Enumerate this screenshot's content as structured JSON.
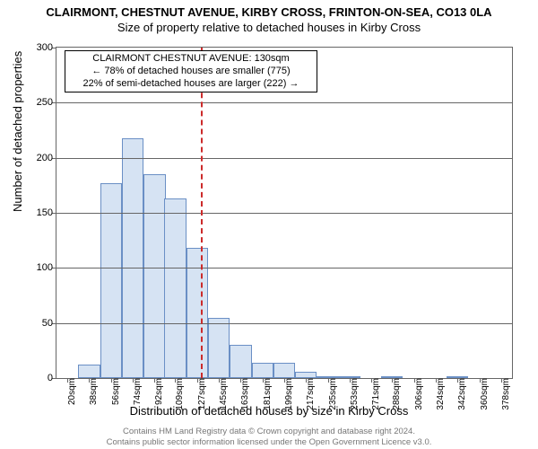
{
  "title": "CLAIRMONT, CHESTNUT AVENUE, KIRBY CROSS, FRINTON-ON-SEA, CO13 0LA",
  "title_fontsize": 13,
  "subtitle": "Size of property relative to detached houses in Kirby Cross",
  "subtitle_fontsize": 13,
  "annotation": {
    "line1": "CLAIRMONT CHESTNUT AVENUE: 130sqm",
    "line2": "← 78% of detached houses are smaller (775)",
    "line3": "22% of semi-detached houses are larger (222) →"
  },
  "ylabel": "Number of detached properties",
  "xlabel": "Distribution of detached houses by size in Kirby Cross",
  "footer_line1": "Contains HM Land Registry data © Crown copyright and database right 2024.",
  "footer_line2": "Contains public sector information licensed under the Open Government Licence v3.0.",
  "chart": {
    "type": "histogram",
    "background_color": "#ffffff",
    "grid_color": "#666666",
    "bar_fill": "#d6e3f3",
    "bar_stroke": "#6a8fc5",
    "marker_color": "#cc2b2b",
    "marker_dash": "3,3",
    "marker_x": 130,
    "ylim": [
      0,
      300
    ],
    "ytick_step": 50,
    "xlim": [
      11,
      387
    ],
    "xticks": [
      20,
      38,
      56,
      74,
      92,
      109,
      127,
      145,
      163,
      181,
      199,
      217,
      235,
      253,
      271,
      288,
      306,
      324,
      342,
      360,
      378
    ],
    "bar_width_units": 18,
    "bars": [
      {
        "x": 20,
        "v": 0
      },
      {
        "x": 38,
        "v": 12
      },
      {
        "x": 56,
        "v": 177
      },
      {
        "x": 74,
        "v": 218
      },
      {
        "x": 92,
        "v": 185
      },
      {
        "x": 109,
        "v": 163
      },
      {
        "x": 127,
        "v": 118
      },
      {
        "x": 145,
        "v": 55
      },
      {
        "x": 163,
        "v": 30
      },
      {
        "x": 181,
        "v": 14
      },
      {
        "x": 199,
        "v": 14
      },
      {
        "x": 217,
        "v": 6
      },
      {
        "x": 235,
        "v": 2
      },
      {
        "x": 253,
        "v": 1
      },
      {
        "x": 271,
        "v": 0
      },
      {
        "x": 288,
        "v": 2
      },
      {
        "x": 306,
        "v": 0
      },
      {
        "x": 324,
        "v": 0
      },
      {
        "x": 342,
        "v": 1
      },
      {
        "x": 360,
        "v": 0
      },
      {
        "x": 378,
        "v": 0
      }
    ]
  }
}
